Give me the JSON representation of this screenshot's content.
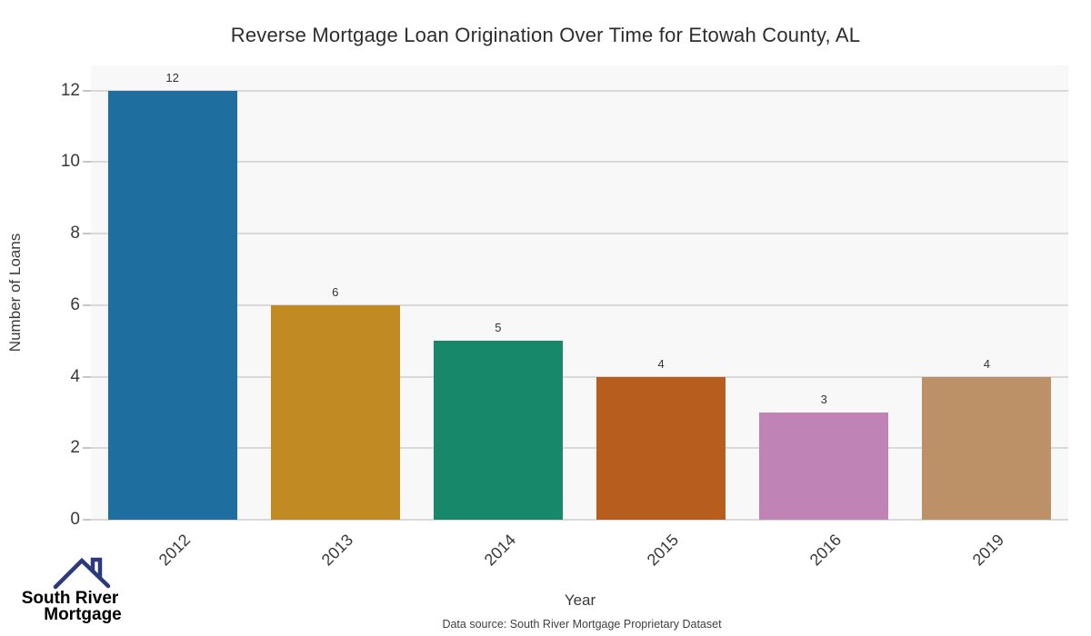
{
  "title": "Reverse Mortgage Loan Origination Over Time for Etowah County, AL",
  "chart_data": {
    "type": "bar",
    "categories": [
      "2012",
      "2013",
      "2014",
      "2015",
      "2016",
      "2019"
    ],
    "values": [
      12,
      6,
      5,
      4,
      3,
      4
    ],
    "bar_colors": [
      "#1e6f9f",
      "#c28a23",
      "#17896a",
      "#b75e1e",
      "#c083b5",
      "#bd9168"
    ],
    "title": "Reverse Mortgage Loan Origination Over Time for Etowah County, AL",
    "xlabel": "Year",
    "ylabel": "Number of Loans",
    "yticks": [
      0,
      2,
      4,
      6,
      8,
      10,
      12
    ],
    "ylim": [
      0,
      12.7
    ],
    "grid": true,
    "legend": "none",
    "plot_background": "#f8f8f8",
    "grid_color": "#d9d9d9"
  },
  "footer": {
    "source_text": "Data source: South River Mortgage Proprietary Dataset"
  },
  "logo": {
    "icon": "house-roof-icon",
    "line1": "South River",
    "line2": "Mortgage",
    "color_line1": "#4a73b9",
    "color_line2": "#2c3a7d"
  }
}
